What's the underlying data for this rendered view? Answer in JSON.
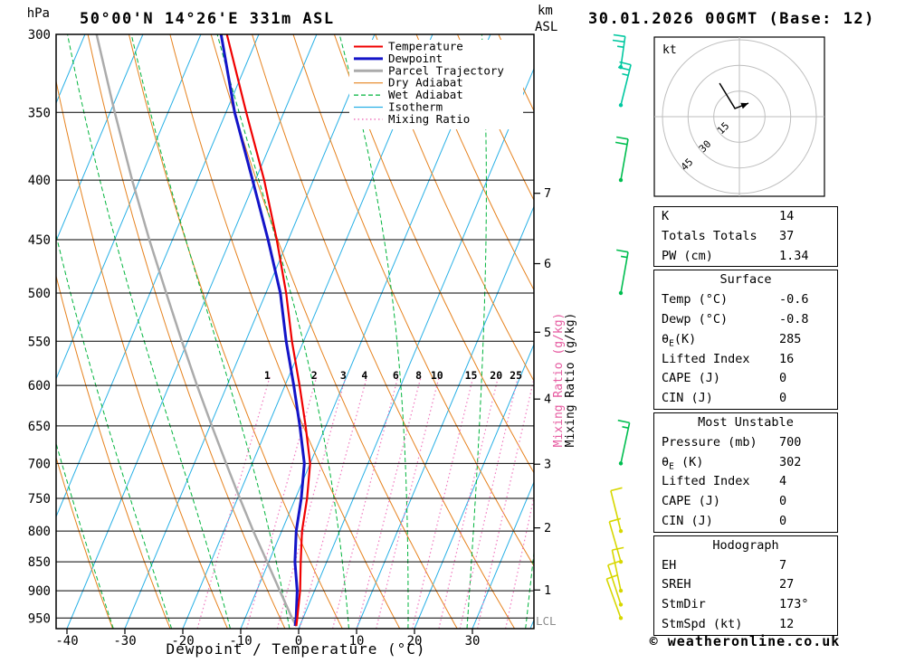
{
  "header": {
    "pressure_unit": "hPa",
    "station_title": "50°00'N 14°26'E 331m ASL",
    "run_title": "30.01.2026 00GMT (Base: 12)",
    "alt_unit_line1": "km",
    "alt_unit_line2": "ASL"
  },
  "axes": {
    "xlabel": "Dewpoint / Temperature (°C)",
    "x_ticks": [
      {
        "v": -40,
        "label": "-40"
      },
      {
        "v": -30,
        "label": "-30"
      },
      {
        "v": -20,
        "label": "-20"
      },
      {
        "v": -10,
        "label": "-10"
      },
      {
        "v": 0,
        "label": "0"
      },
      {
        "v": 10,
        "label": "10"
      },
      {
        "v": 20,
        "label": "20"
      },
      {
        "v": 30,
        "label": "30"
      }
    ],
    "pressure_ticks": [
      300,
      350,
      400,
      450,
      500,
      550,
      600,
      650,
      700,
      750,
      800,
      850,
      900,
      950
    ],
    "km_ticks": [
      1,
      2,
      3,
      4,
      5,
      6,
      7
    ],
    "mixing_ratio_label": "Mixing Ratio (g/kg)",
    "mixing_ratio_tick_labels": [
      "1",
      "2",
      "3",
      "4",
      "6",
      "8",
      "10",
      "15",
      "20",
      "25"
    ],
    "mixing_ratio_tick_values": [
      1,
      2,
      3,
      4,
      6,
      8,
      10,
      15,
      20,
      25
    ],
    "mixing_ratio_lines": [
      1,
      2,
      3,
      4,
      6,
      8,
      10,
      15,
      20,
      25,
      30,
      40
    ],
    "lcl_label": "LCL"
  },
  "legend": {
    "items": [
      {
        "label": "Temperature",
        "color": "#F00000",
        "width": 2,
        "dash": ""
      },
      {
        "label": "Dewpoint",
        "color": "#1414C8",
        "width": 3,
        "dash": ""
      },
      {
        "label": "Parcel Trajectory",
        "color": "#ABABAB",
        "width": 3,
        "dash": ""
      },
      {
        "label": "Dry Adiabat",
        "color": "#E6821E",
        "width": 1.2,
        "dash": ""
      },
      {
        "label": "Wet Adiabat",
        "color": "#00B43C",
        "width": 1.2,
        "dash": "5 3"
      },
      {
        "label": "Isotherm",
        "color": "#28B0E6",
        "width": 1.2,
        "dash": ""
      },
      {
        "label": "Mixing Ratio",
        "color": "#F078BE",
        "width": 1.5,
        "dash": "1.5 3"
      }
    ]
  },
  "chart_data": {
    "type": "skewt_sounding",
    "title": "50°00'N 14°26'E 331m ASL",
    "x_axis": {
      "label": "Dewpoint / Temperature (°C)",
      "range_c": [
        -40,
        40
      ]
    },
    "y_axis": {
      "label": "hPa",
      "scale": "log",
      "range_hpa": [
        300,
        970
      ]
    },
    "series": [
      {
        "name": "Temperature",
        "unit": "°C",
        "pressure_hpa": [
          965,
          950,
          900,
          850,
          800,
          750,
          700,
          650,
          600,
          550,
          500,
          450,
          400,
          350,
          300
        ],
        "values_c": [
          -0.6,
          -1.0,
          -2.5,
          -4.5,
          -6.5,
          -8.0,
          -10.0,
          -13.5,
          -17.5,
          -22.0,
          -26.5,
          -32.0,
          -38.5,
          -46.5,
          -55.5
        ]
      },
      {
        "name": "Dewpoint",
        "unit": "°C",
        "pressure_hpa": [
          965,
          950,
          900,
          850,
          800,
          750,
          700,
          650,
          600,
          550,
          500,
          450,
          400,
          350,
          300
        ],
        "values_c": [
          -0.8,
          -1.2,
          -3.0,
          -5.5,
          -7.5,
          -9.0,
          -11.0,
          -14.5,
          -18.5,
          -23.0,
          -27.5,
          -33.5,
          -40.5,
          -48.5,
          -56.5
        ]
      },
      {
        "name": "Parcel Trajectory",
        "unit": "°C",
        "pressure_hpa": [
          965,
          950,
          900,
          850,
          800,
          750,
          700,
          650,
          600,
          550,
          500,
          450,
          400,
          350,
          300
        ],
        "values_c": [
          -0.6,
          -1.9,
          -6.0,
          -10.3,
          -14.9,
          -19.6,
          -24.5,
          -29.7,
          -35.2,
          -41.0,
          -47.2,
          -54.0,
          -61.3,
          -69.2,
          -78.0
        ]
      }
    ],
    "wind_barbs": [
      {
        "pressure_hpa": 320,
        "speed_kt": 25,
        "color": "#00C8A0",
        "tilt_deg": 8
      },
      {
        "pressure_hpa": 345,
        "speed_kt": 25,
        "color": "#00C8A0",
        "tilt_deg": 14
      },
      {
        "pressure_hpa": 400,
        "speed_kt": 20,
        "color": "#00BE50",
        "tilt_deg": 10
      },
      {
        "pressure_hpa": 500,
        "speed_kt": 15,
        "color": "#00BE50",
        "tilt_deg": 10
      },
      {
        "pressure_hpa": 700,
        "speed_kt": 15,
        "color": "#00BE50",
        "tilt_deg": 12
      },
      {
        "pressure_hpa": 800,
        "speed_kt": 10,
        "color": "#D7D700",
        "tilt_deg": -14
      },
      {
        "pressure_hpa": 850,
        "speed_kt": 10,
        "color": "#D7D700",
        "tilt_deg": -16
      },
      {
        "pressure_hpa": 900,
        "speed_kt": 12,
        "color": "#D7D700",
        "tilt_deg": -12
      },
      {
        "pressure_hpa": 925,
        "speed_kt": 12,
        "color": "#D7D700",
        "tilt_deg": -18
      },
      {
        "pressure_hpa": 950,
        "speed_kt": 10,
        "color": "#D7D700",
        "tilt_deg": -20
      }
    ],
    "lcl_pressure_hpa": 955
  },
  "hodograph": {
    "unit_label": "kt",
    "rings_kt": [
      15,
      30,
      45
    ],
    "ring_labels": [
      "15",
      "30",
      "45"
    ],
    "trace_kt": [
      [
        -11.6,
        19.6
      ],
      [
        -2.6,
        4.8
      ],
      [
        5.3,
        7.9
      ]
    ]
  },
  "table": {
    "sections": [
      {
        "title": null,
        "rows": [
          {
            "label": "K",
            "value": "14"
          },
          {
            "label": "Totals Totals",
            "value": "37"
          },
          {
            "label": "PW (cm)",
            "value": "1.34"
          }
        ]
      },
      {
        "title": "Surface",
        "rows": [
          {
            "label": "Temp (°C)",
            "value": "-0.6"
          },
          {
            "label": "Dewp (°C)",
            "value": "-0.8"
          },
          {
            "label": "θE(K)",
            "value": "285"
          },
          {
            "label": "Lifted Index",
            "value": "16"
          },
          {
            "label": "CAPE (J)",
            "value": "0"
          },
          {
            "label": "CIN (J)",
            "value": "0"
          }
        ]
      },
      {
        "title": "Most Unstable",
        "rows": [
          {
            "label": "Pressure (mb)",
            "value": "700"
          },
          {
            "label": "θE (K)",
            "value": "302"
          },
          {
            "label": "Lifted Index",
            "value": "4"
          },
          {
            "label": "CAPE (J)",
            "value": "0"
          },
          {
            "label": "CIN (J)",
            "value": "0"
          }
        ]
      },
      {
        "title": "Hodograph",
        "rows": [
          {
            "label": "EH",
            "value": "7"
          },
          {
            "label": "SREH",
            "value": "27"
          },
          {
            "label": "StmDir",
            "value": "173°"
          },
          {
            "label": "StmSpd (kt)",
            "value": "12"
          }
        ]
      }
    ]
  },
  "footer": {
    "copyright": "© weatheronline.co.uk"
  },
  "colors": {
    "temperature": "#F00000",
    "dewpoint": "#1414C8",
    "parcel": "#ABABAB",
    "dry_adiabat": "#E6821E",
    "wet_adiabat": "#00B43C",
    "isotherm": "#28B0E6",
    "mixing_ratio": "#F078BE",
    "mixing_ratio_label": "#E65AA0",
    "isobar": "#000000",
    "hodo_ring": "#BEBEBE"
  }
}
